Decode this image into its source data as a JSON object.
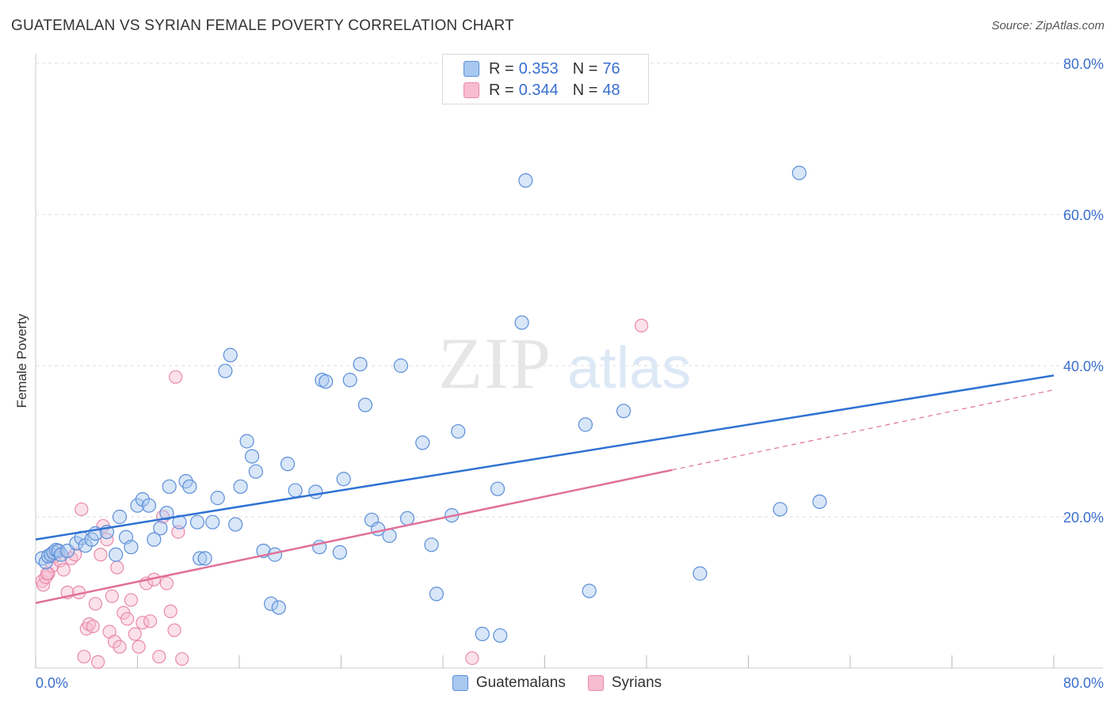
{
  "title": "GUATEMALAN VS SYRIAN FEMALE POVERTY CORRELATION CHART",
  "source": "Source: ZipAtlas.com",
  "watermark": {
    "zip": "ZIP",
    "atlas": "atlas"
  },
  "legend": {
    "rows": [
      {
        "r_label": "R =",
        "r_value": "0.353",
        "n_label": "N =",
        "n_value": "76"
      },
      {
        "r_label": "R =",
        "r_value": "0.344",
        "n_label": "N =",
        "n_value": "48"
      }
    ]
  },
  "bottom_legend": {
    "guatemalans": "Guatemalans",
    "syrians": "Syrians"
  },
  "colors": {
    "guatemalan_fill": "#a8c8f0",
    "guatemalan_stroke": "#5b8fd8",
    "guatemalan_line": "#2f72d2",
    "syrian_fill": "#f7bcd0",
    "syrian_stroke": "#e88aaa",
    "syrian_line": "#e0709a",
    "tick_label": "#3a6fcf",
    "grid": "#dddddd"
  },
  "chart_data": {
    "type": "scatter",
    "title": "GUATEMALAN VS SYRIAN FEMALE POVERTY CORRELATION CHART",
    "xlabel": "",
    "ylabel": "Female Poverty",
    "xlim": [
      0,
      80
    ],
    "ylim": [
      0,
      80
    ],
    "x_tick_labels": [
      "0.0%",
      "80.0%"
    ],
    "y_tick_labels": [
      "20.0%",
      "40.0%",
      "60.0%",
      "80.0%"
    ],
    "y_ticks": [
      20,
      40,
      60,
      80
    ],
    "grid": true,
    "legend_position": "top-center",
    "series": [
      {
        "name": "Guatemalans",
        "r": 0.353,
        "n": 76,
        "trend": {
          "x": [
            0,
            80
          ],
          "y": [
            17.0,
            38.7
          ]
        },
        "points": [
          [
            0.5,
            14.5
          ],
          [
            0.8,
            14.0
          ],
          [
            1.0,
            14.8
          ],
          [
            1.2,
            15.0
          ],
          [
            1.4,
            15.3
          ],
          [
            1.6,
            15.6
          ],
          [
            1.8,
            15.5
          ],
          [
            2.0,
            15.0
          ],
          [
            2.5,
            15.5
          ],
          [
            3.2,
            16.5
          ],
          [
            3.6,
            17.2
          ],
          [
            3.9,
            16.2
          ],
          [
            4.4,
            17.0
          ],
          [
            4.7,
            17.8
          ],
          [
            5.6,
            18.0
          ],
          [
            6.3,
            15.0
          ],
          [
            6.6,
            20.0
          ],
          [
            7.1,
            17.3
          ],
          [
            7.5,
            16.0
          ],
          [
            8.0,
            21.5
          ],
          [
            8.4,
            22.3
          ],
          [
            8.9,
            21.5
          ],
          [
            9.3,
            17.0
          ],
          [
            9.8,
            18.5
          ],
          [
            10.3,
            20.5
          ],
          [
            10.5,
            24.0
          ],
          [
            11.3,
            19.3
          ],
          [
            11.8,
            24.7
          ],
          [
            12.1,
            24.0
          ],
          [
            12.7,
            19.3
          ],
          [
            12.9,
            14.5
          ],
          [
            13.3,
            14.5
          ],
          [
            13.9,
            19.3
          ],
          [
            14.3,
            22.5
          ],
          [
            14.9,
            39.3
          ],
          [
            15.3,
            41.4
          ],
          [
            15.7,
            19.0
          ],
          [
            16.1,
            24.0
          ],
          [
            16.6,
            30.0
          ],
          [
            17.0,
            28.0
          ],
          [
            17.3,
            26.0
          ],
          [
            17.9,
            15.5
          ],
          [
            18.5,
            8.5
          ],
          [
            18.8,
            15.0
          ],
          [
            19.1,
            8.0
          ],
          [
            19.8,
            27.0
          ],
          [
            20.4,
            23.5
          ],
          [
            22.0,
            23.3
          ],
          [
            22.3,
            16.0
          ],
          [
            22.5,
            38.1
          ],
          [
            22.8,
            37.9
          ],
          [
            23.9,
            15.3
          ],
          [
            24.2,
            25.0
          ],
          [
            24.7,
            38.1
          ],
          [
            25.5,
            40.2
          ],
          [
            25.9,
            34.8
          ],
          [
            26.4,
            19.6
          ],
          [
            26.9,
            18.4
          ],
          [
            27.8,
            17.5
          ],
          [
            28.7,
            40.0
          ],
          [
            29.2,
            19.8
          ],
          [
            30.4,
            29.8
          ],
          [
            31.1,
            16.3
          ],
          [
            31.5,
            9.8
          ],
          [
            32.7,
            20.2
          ],
          [
            33.2,
            31.3
          ],
          [
            35.1,
            4.5
          ],
          [
            36.3,
            23.7
          ],
          [
            36.5,
            4.3
          ],
          [
            38.2,
            45.7
          ],
          [
            38.5,
            64.5
          ],
          [
            43.2,
            32.2
          ],
          [
            43.5,
            10.2
          ],
          [
            46.2,
            34.0
          ],
          [
            52.2,
            12.5
          ],
          [
            58.5,
            21.0
          ],
          [
            60.0,
            65.5
          ],
          [
            61.6,
            22.0
          ]
        ]
      },
      {
        "name": "Syrians",
        "r": 0.344,
        "n": 48,
        "trend": {
          "x": [
            0,
            50
          ],
          "y": [
            8.6,
            26.2
          ]
        },
        "trend_extension": {
          "x": [
            50,
            80
          ],
          "y": [
            26.2,
            36.8
          ]
        },
        "points": [
          [
            0.5,
            11.5
          ],
          [
            0.6,
            11.0
          ],
          [
            0.8,
            12.0
          ],
          [
            1.0,
            12.5
          ],
          [
            1.3,
            13.5
          ],
          [
            1.5,
            14.8
          ],
          [
            1.7,
            15.5
          ],
          [
            1.9,
            14.2
          ],
          [
            2.2,
            13.0
          ],
          [
            2.5,
            10.0
          ],
          [
            2.8,
            14.5
          ],
          [
            3.1,
            15.0
          ],
          [
            3.4,
            10.0
          ],
          [
            3.6,
            21.0
          ],
          [
            3.8,
            1.5
          ],
          [
            4.0,
            5.2
          ],
          [
            4.2,
            5.8
          ],
          [
            4.5,
            5.5
          ],
          [
            4.7,
            8.5
          ],
          [
            4.9,
            0.8
          ],
          [
            5.1,
            15.0
          ],
          [
            5.3,
            18.8
          ],
          [
            5.6,
            17.0
          ],
          [
            5.8,
            4.8
          ],
          [
            6.0,
            9.5
          ],
          [
            6.2,
            3.5
          ],
          [
            6.4,
            13.3
          ],
          [
            6.6,
            2.8
          ],
          [
            6.9,
            7.3
          ],
          [
            7.2,
            6.5
          ],
          [
            7.5,
            9.0
          ],
          [
            7.8,
            4.5
          ],
          [
            8.1,
            2.8
          ],
          [
            8.4,
            6.0
          ],
          [
            8.7,
            11.2
          ],
          [
            9.0,
            6.2
          ],
          [
            9.3,
            11.7
          ],
          [
            9.7,
            1.5
          ],
          [
            10.0,
            20.0
          ],
          [
            10.3,
            11.2
          ],
          [
            10.6,
            7.5
          ],
          [
            10.9,
            5.0
          ],
          [
            11.2,
            18.0
          ],
          [
            11.5,
            1.2
          ],
          [
            11.0,
            38.5
          ],
          [
            34.3,
            1.3
          ],
          [
            47.6,
            45.3
          ],
          [
            0.9,
            12.5
          ]
        ]
      }
    ]
  }
}
